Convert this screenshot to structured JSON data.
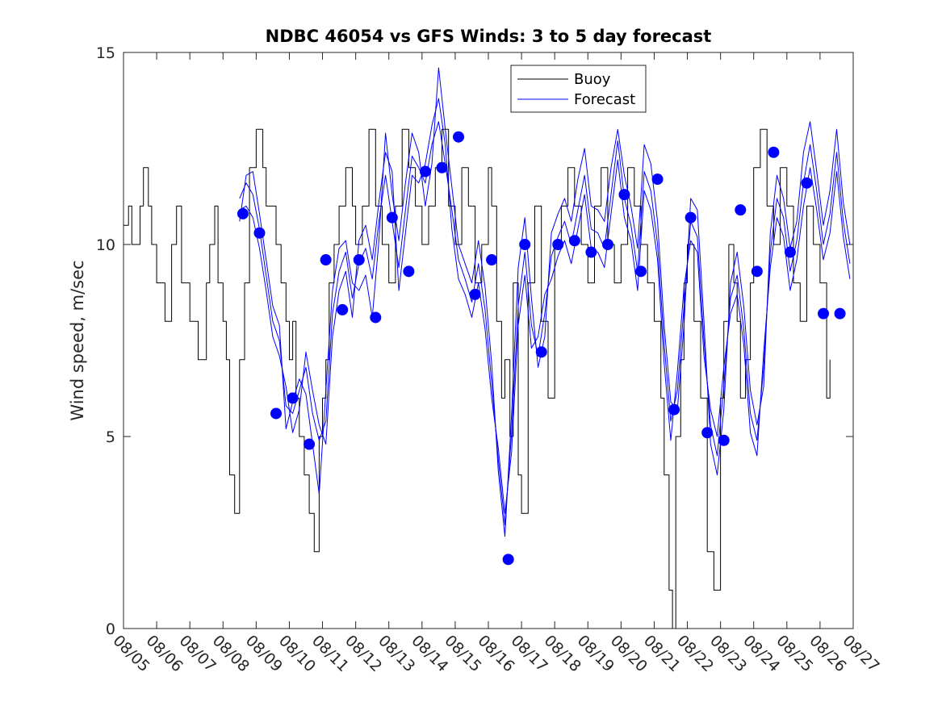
{
  "chart_data": {
    "type": "line",
    "title": "NDBC 46054 vs GFS Winds: 3 to 5 day forecast",
    "xlabel": "",
    "ylabel": "Wind speed, m/sec",
    "ylim": [
      0,
      15
    ],
    "xlim": [
      0,
      22
    ],
    "yticks": [
      0,
      5,
      10,
      15
    ],
    "xtick_labels": [
      "08/05",
      "08/06",
      "08/07",
      "08/08",
      "08/09",
      "08/10",
      "08/11",
      "08/12",
      "08/13",
      "08/14",
      "08/15",
      "08/16",
      "08/17",
      "08/18",
      "08/19",
      "08/20",
      "08/21",
      "08/22",
      "08/23",
      "08/24",
      "08/25",
      "08/26",
      "08/27"
    ],
    "legend": {
      "position": "top-center",
      "entries": [
        "Buoy",
        "Forecast"
      ]
    },
    "colors": {
      "buoy": "#000000",
      "forecast": "#0000ff",
      "axis": "#262626"
    },
    "series": [
      {
        "name": "Buoy",
        "x": [
          0.0,
          0.15,
          0.25,
          0.5,
          0.6,
          0.75,
          0.85,
          1.0,
          1.25,
          1.45,
          1.6,
          1.75,
          2.0,
          2.25,
          2.5,
          2.6,
          2.75,
          2.85,
          3.0,
          3.1,
          3.2,
          3.35,
          3.5,
          3.65,
          3.8,
          4.0,
          4.2,
          4.3,
          4.5,
          4.6,
          4.75,
          4.9,
          5.0,
          5.1,
          5.2,
          5.3,
          5.45,
          5.6,
          5.75,
          5.9,
          6.0,
          6.1,
          6.2,
          6.35,
          6.5,
          6.7,
          6.9,
          7.0,
          7.2,
          7.4,
          7.6,
          7.8,
          8.0,
          8.2,
          8.4,
          8.6,
          8.8,
          9.0,
          9.2,
          9.4,
          9.6,
          9.8,
          10.0,
          10.2,
          10.4,
          10.6,
          10.8,
          11.0,
          11.1,
          11.25,
          11.4,
          11.5,
          11.65,
          11.75,
          11.9,
          12.0,
          12.2,
          12.4,
          12.6,
          12.8,
          13.0,
          13.2,
          13.4,
          13.6,
          13.8,
          14.0,
          14.2,
          14.4,
          14.6,
          14.8,
          15.0,
          15.2,
          15.4,
          15.6,
          15.8,
          16.0,
          16.2,
          16.3,
          16.45,
          16.55,
          16.65,
          16.8,
          16.9,
          17.0,
          17.2,
          17.4,
          17.6,
          17.8,
          18.0,
          18.1,
          18.25,
          18.4,
          18.5,
          18.6,
          18.75,
          18.9,
          19.0,
          19.2,
          19.4,
          19.6,
          19.8,
          20.0,
          20.2,
          20.4,
          20.6,
          20.8,
          21.0,
          21.2,
          21.3
        ],
        "values": [
          10.5,
          11,
          10,
          11,
          12,
          11,
          10,
          9,
          8,
          10,
          11,
          9,
          8,
          7,
          9,
          10,
          11,
          9,
          8,
          7,
          4,
          3,
          7,
          9,
          12,
          13,
          12,
          11,
          11,
          10,
          9,
          8,
          7,
          8,
          6,
          5,
          4,
          3,
          2,
          5,
          6,
          7,
          9,
          10,
          11,
          12,
          11,
          10,
          11,
          13,
          11,
          10,
          9,
          11,
          13,
          12,
          11,
          10,
          11,
          12,
          13,
          11,
          10,
          12,
          11,
          9,
          10,
          12,
          11,
          8,
          6,
          7,
          5,
          9,
          4,
          3,
          9,
          11,
          8,
          6,
          10,
          11,
          12,
          11,
          10,
          9,
          11,
          12,
          10,
          9,
          10,
          12,
          11,
          10,
          9,
          8,
          6,
          4,
          1,
          0,
          5,
          7,
          9,
          10,
          8,
          6,
          2,
          1,
          6,
          8,
          10,
          9,
          8,
          6,
          7,
          9,
          12,
          13,
          11,
          10,
          12,
          11,
          9,
          8,
          11,
          10,
          9,
          6,
          7
        ]
      },
      {
        "name": "Forecast",
        "x": [
          3.5,
          3.7,
          3.9,
          4.1,
          4.3,
          4.5,
          4.7,
          4.9,
          5.1,
          5.3,
          5.5,
          5.7,
          5.9,
          6.1,
          6.3,
          6.5,
          6.7,
          6.9,
          7.1,
          7.3,
          7.5,
          7.7,
          7.9,
          8.1,
          8.3,
          8.5,
          8.7,
          8.9,
          9.1,
          9.3,
          9.5,
          9.7,
          9.9,
          10.1,
          10.3,
          10.5,
          10.7,
          10.9,
          11.1,
          11.3,
          11.5,
          11.7,
          11.9,
          12.1,
          12.3,
          12.5,
          12.7,
          12.9,
          13.1,
          13.3,
          13.5,
          13.7,
          13.9,
          14.1,
          14.3,
          14.5,
          14.7,
          14.9,
          15.1,
          15.3,
          15.5,
          15.7,
          15.9,
          16.1,
          16.3,
          16.5,
          16.7,
          16.9,
          17.1,
          17.3,
          17.5,
          17.7,
          17.9,
          18.1,
          18.3,
          18.5,
          18.7,
          18.9,
          19.1,
          19.3,
          19.5,
          19.7,
          19.9,
          20.1,
          20.3,
          20.5,
          20.7,
          20.9,
          21.1,
          21.3,
          21.5,
          21.7,
          21.9
        ],
        "values": [
          11.2,
          11.6,
          11.3,
          10.4,
          9.2,
          8.0,
          7.5,
          5.8,
          5.6,
          6.2,
          6.8,
          5.6,
          4.9,
          5.4,
          8.2,
          9.3,
          9.8,
          8.6,
          9.5,
          9.9,
          9.1,
          10.6,
          11.8,
          10.6,
          9.4,
          10.9,
          12.3,
          12.0,
          11.6,
          12.6,
          13.2,
          12.1,
          10.9,
          9.6,
          9.1,
          8.5,
          9.5,
          8.3,
          6.4,
          4.4,
          2.7,
          5.1,
          8.4,
          9.8,
          7.9,
          7.1,
          8.2,
          9.7,
          10.2,
          10.6,
          10.0,
          10.9,
          11.8,
          10.4,
          10.3,
          9.9,
          11.3,
          12.7,
          11.2,
          10.5,
          9.3,
          11.9,
          11.4,
          10.0,
          7.4,
          5.4,
          6.2,
          8.4,
          10.6,
          10.2,
          7.5,
          5.3,
          4.5,
          6.3,
          8.6,
          9.2,
          7.8,
          5.6,
          4.9,
          6.8,
          9.8,
          11.2,
          10.7,
          9.3,
          10.1,
          11.6,
          12.6,
          11.4,
          10.0,
          10.8,
          12.4,
          10.6,
          9.5
        ]
      },
      {
        "name": "Forecast",
        "x": [
          3.5,
          3.7,
          3.9,
          4.1,
          4.3,
          4.5,
          4.7,
          4.9,
          5.1,
          5.3,
          5.5,
          5.7,
          5.9,
          6.1,
          6.3,
          6.5,
          6.7,
          6.9,
          7.1,
          7.3,
          7.5,
          7.7,
          7.9,
          8.1,
          8.3,
          8.5,
          8.7,
          8.9,
          9.1,
          9.3,
          9.5,
          9.7,
          9.9,
          10.1,
          10.3,
          10.5,
          10.7,
          10.9,
          11.1,
          11.3,
          11.5,
          11.7,
          11.9,
          12.1,
          12.3,
          12.5,
          12.7,
          12.9,
          13.1,
          13.3,
          13.5,
          13.7,
          13.9,
          14.1,
          14.3,
          14.5,
          14.7,
          14.9,
          15.1,
          15.3,
          15.5,
          15.7,
          15.9,
          16.1,
          16.3,
          16.5,
          16.7,
          16.9,
          17.1,
          17.3,
          17.5,
          17.7,
          17.9,
          18.1,
          18.3,
          18.5,
          18.7,
          18.9,
          19.1,
          19.3,
          19.5,
          19.7,
          19.9,
          20.1,
          20.3,
          20.5,
          20.7,
          20.9,
          21.1,
          21.3,
          21.5,
          21.7,
          21.9
        ],
        "values": [
          10.6,
          11.8,
          11.9,
          10.8,
          9.6,
          8.4,
          7.9,
          5.2,
          5.9,
          6.5,
          6.1,
          4.8,
          3.5,
          6.2,
          8.8,
          9.9,
          10.1,
          9.0,
          8.8,
          9.2,
          8.1,
          10.1,
          12.9,
          11.3,
          10.1,
          11.6,
          12.9,
          12.4,
          11.0,
          12.1,
          14.6,
          13.0,
          11.5,
          10.0,
          9.5,
          9.0,
          10.1,
          8.9,
          6.9,
          4.1,
          2.4,
          5.6,
          9.4,
          10.7,
          8.6,
          6.8,
          7.6,
          10.3,
          10.8,
          11.2,
          10.6,
          11.7,
          12.5,
          11.0,
          10.9,
          10.6,
          12.0,
          13.0,
          11.8,
          11.0,
          9.9,
          12.6,
          12.1,
          10.6,
          7.9,
          5.9,
          5.7,
          7.9,
          11.2,
          10.9,
          8.0,
          4.8,
          4.0,
          5.7,
          9.0,
          9.8,
          8.4,
          6.2,
          5.3,
          6.3,
          10.3,
          11.8,
          11.2,
          9.9,
          10.6,
          12.4,
          13.2,
          11.9,
          10.5,
          11.4,
          13.0,
          11.1,
          10.0
        ]
      },
      {
        "name": "Forecast",
        "x": [
          3.5,
          3.7,
          3.9,
          4.1,
          4.3,
          4.5,
          4.7,
          4.9,
          5.1,
          5.3,
          5.5,
          5.7,
          5.9,
          6.1,
          6.3,
          6.5,
          6.7,
          6.9,
          7.1,
          7.3,
          7.5,
          7.7,
          7.9,
          8.1,
          8.3,
          8.5,
          8.7,
          8.9,
          9.1,
          9.3,
          9.5,
          9.7,
          9.9,
          10.1,
          10.3,
          10.5,
          10.7,
          10.9,
          11.1,
          11.3,
          11.5,
          11.7,
          11.9,
          12.1,
          12.3,
          12.5,
          12.7,
          12.9,
          13.1,
          13.3,
          13.5,
          13.7,
          13.9,
          14.1,
          14.3,
          14.5,
          14.7,
          14.9,
          15.1,
          15.3,
          15.5,
          15.7,
          15.9,
          16.1,
          16.3,
          16.5,
          16.7,
          16.9,
          17.1,
          17.3,
          17.5,
          17.7,
          17.9,
          18.1,
          18.3,
          18.5,
          18.7,
          18.9,
          19.1,
          19.3,
          19.5,
          19.7,
          19.9,
          20.1,
          20.3,
          20.5,
          20.7,
          20.9,
          21.1,
          21.3,
          21.5,
          21.7,
          21.9
        ],
        "values": [
          10.9,
          11.0,
          10.7,
          9.9,
          8.8,
          7.6,
          7.1,
          6.3,
          5.1,
          5.7,
          7.2,
          6.2,
          5.3,
          4.8,
          7.6,
          8.8,
          9.3,
          8.1,
          10.1,
          10.5,
          9.6,
          11.1,
          12.4,
          11.9,
          8.8,
          10.3,
          11.8,
          11.6,
          12.1,
          13.1,
          13.8,
          12.6,
          10.4,
          9.1,
          8.7,
          8.1,
          9.0,
          7.8,
          6.0,
          4.7,
          3.0,
          4.6,
          7.9,
          9.2,
          7.3,
          7.6,
          8.7,
          9.1,
          9.7,
          10.1,
          9.5,
          10.4,
          11.3,
          9.9,
          9.8,
          9.4,
          10.8,
          12.2,
          10.7,
          10.1,
          8.8,
          11.4,
          10.9,
          9.6,
          6.9,
          4.9,
          6.7,
          8.9,
          10.1,
          9.8,
          7.1,
          5.7,
          5.0,
          6.8,
          8.2,
          8.7,
          7.4,
          5.1,
          4.5,
          7.2,
          9.4,
          10.7,
          10.2,
          8.8,
          9.6,
          11.0,
          12.0,
          10.9,
          9.6,
          10.3,
          11.9,
          10.2,
          9.1
        ]
      }
    ],
    "markers": {
      "name": "Forecast",
      "x": [
        3.6,
        4.1,
        4.6,
        5.1,
        5.6,
        6.1,
        6.6,
        7.1,
        7.6,
        8.1,
        8.6,
        9.1,
        9.6,
        10.1,
        10.6,
        11.1,
        11.6,
        12.1,
        12.6,
        13.1,
        13.6,
        14.1,
        14.6,
        15.1,
        15.6,
        16.1,
        16.6,
        17.1,
        17.6,
        18.1,
        18.6,
        19.1,
        19.6,
        20.1,
        20.6,
        21.1,
        21.6
      ],
      "values": [
        10.8,
        10.3,
        5.6,
        6.0,
        4.8,
        9.6,
        8.3,
        9.6,
        8.1,
        10.7,
        9.3,
        11.9,
        12.0,
        12.8,
        8.7,
        9.6,
        1.8,
        10.0,
        7.2,
        10.0,
        10.1,
        9.8,
        10.0,
        11.3,
        9.3,
        11.7,
        5.7,
        10.7,
        5.1,
        4.9,
        10.9,
        9.3,
        12.4,
        9.8,
        11.6,
        8.2,
        8.2
      ]
    }
  }
}
